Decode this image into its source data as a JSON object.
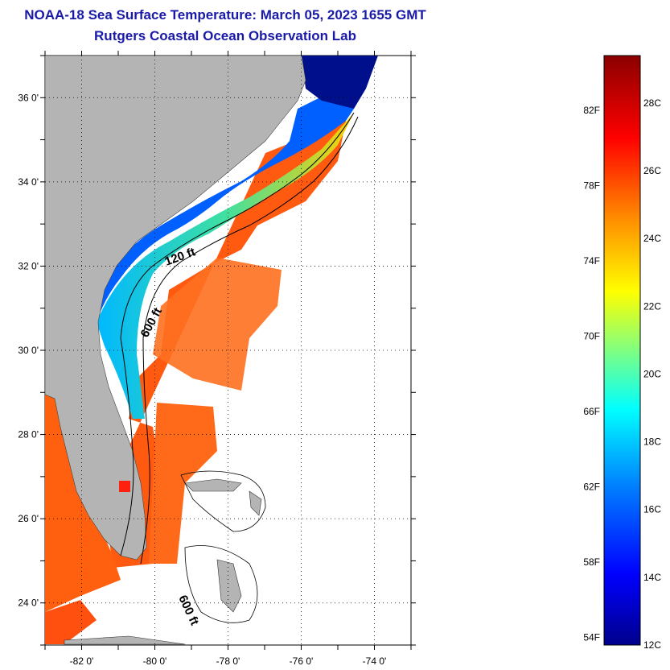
{
  "header": {
    "title": "NOAA-18 Sea Surface Temperature:  March 05, 2023 1655 GMT",
    "subtitle": "Rutgers Coastal Ocean Observation Lab"
  },
  "map": {
    "lon_ticks": [
      "-82 0'",
      "-80 0'",
      "-78 0'",
      "-76 0'",
      "-74 0'"
    ],
    "lat_ticks": [
      "36 0'",
      "34 0'",
      "32 0'",
      "30 0'",
      "28 0'",
      "26 0'",
      "24 0'"
    ],
    "lon_range": [
      -83,
      -73
    ],
    "lat_range": [
      23,
      37
    ],
    "contour_labels": [
      "120 ft",
      "600 ft",
      "600 ft"
    ],
    "land_color": "#b4b4b4"
  },
  "colorbar": {
    "fahrenheit_labels": [
      "82F",
      "78F",
      "74F",
      "70F",
      "66F",
      "62F",
      "58F",
      "54F"
    ],
    "celsius_labels": [
      "28C",
      "26C",
      "24C",
      "22C",
      "20C",
      "18C",
      "16C",
      "14C",
      "12C"
    ],
    "range_c": [
      12,
      29.4
    ],
    "colors": [
      "#00008b",
      "#0000ff",
      "#0080ff",
      "#00ffff",
      "#80ff80",
      "#ffff00",
      "#ff8000",
      "#ff0000",
      "#8b0000"
    ]
  }
}
